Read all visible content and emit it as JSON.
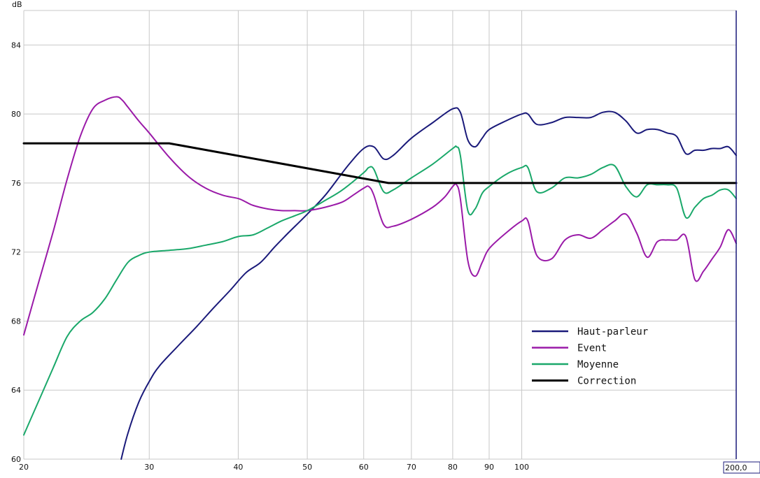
{
  "chart_data": {
    "type": "line",
    "y_unit_label": "dB",
    "x_scale": "log",
    "xlim": [
      20,
      200
    ],
    "ylim": [
      60,
      86
    ],
    "x_ticks": [
      {
        "value": 20,
        "label": "20"
      },
      {
        "value": 30,
        "label": "30"
      },
      {
        "value": 40,
        "label": "40"
      },
      {
        "value": 50,
        "label": "50"
      },
      {
        "value": 60,
        "label": "60"
      },
      {
        "value": 70,
        "label": "70"
      },
      {
        "value": 80,
        "label": "80"
      },
      {
        "value": 90,
        "label": "90"
      },
      {
        "value": 100,
        "label": "100"
      }
    ],
    "x_end_label": "200,0",
    "y_ticks": [
      {
        "value": 60,
        "label": "60"
      },
      {
        "value": 64,
        "label": "64"
      },
      {
        "value": 68,
        "label": "68"
      },
      {
        "value": 72,
        "label": "72"
      },
      {
        "value": 76,
        "label": "76"
      },
      {
        "value": 80,
        "label": "80"
      },
      {
        "value": 84,
        "label": "84"
      }
    ],
    "grid": true,
    "legend_position": "bottom-right",
    "series": [
      {
        "name": "Haut-parleur",
        "color": "#1a1a7a",
        "x": [
          27.4,
          28,
          29,
          30,
          31,
          33,
          35,
          37,
          39,
          41,
          43,
          45,
          47,
          50,
          53,
          57,
          60,
          62,
          64,
          66,
          70,
          75,
          80,
          82,
          84,
          86,
          88,
          90,
          95,
          100,
          102,
          105,
          110,
          115,
          120,
          125,
          130,
          135,
          140,
          145,
          150,
          155,
          160,
          165,
          170,
          175,
          180,
          185,
          190,
          195,
          200
        ],
        "y": [
          60.0,
          61.5,
          63.3,
          64.5,
          65.4,
          66.6,
          67.7,
          68.8,
          69.8,
          70.8,
          71.4,
          72.3,
          73.1,
          74.2,
          75.3,
          77.0,
          78.0,
          78.1,
          77.4,
          77.6,
          78.6,
          79.5,
          80.3,
          80.1,
          78.5,
          78.1,
          78.6,
          79.1,
          79.6,
          80.0,
          80.0,
          79.4,
          79.5,
          79.8,
          79.8,
          79.8,
          80.1,
          80.1,
          79.6,
          78.9,
          79.1,
          79.1,
          78.9,
          78.7,
          77.7,
          77.9,
          77.9,
          78.0,
          78.0,
          78.1,
          77.6
        ]
      },
      {
        "name": "Event",
        "color": "#9a1aa8",
        "x": [
          20,
          21,
          22,
          23,
          24,
          25,
          26,
          27,
          27.5,
          28,
          29,
          30,
          32,
          34,
          36,
          38,
          40,
          41,
          42,
          44,
          46,
          48,
          50,
          53,
          56,
          58,
          60,
          61,
          62,
          64,
          66,
          70,
          75,
          78,
          80,
          81,
          82,
          84,
          86,
          88,
          90,
          95,
          100,
          102,
          105,
          110,
          115,
          120,
          125,
          130,
          135,
          140,
          145,
          150,
          155,
          160,
          165,
          170,
          175,
          180,
          185,
          190,
          195,
          200
        ],
        "y": [
          67.2,
          70.3,
          73.2,
          76.2,
          78.7,
          80.3,
          80.8,
          81.0,
          80.8,
          80.4,
          79.6,
          78.9,
          77.5,
          76.4,
          75.7,
          75.3,
          75.1,
          74.9,
          74.7,
          74.5,
          74.4,
          74.4,
          74.4,
          74.6,
          74.9,
          75.3,
          75.7,
          75.8,
          75.3,
          73.6,
          73.5,
          73.9,
          74.6,
          75.2,
          75.8,
          75.9,
          75.1,
          71.5,
          70.6,
          71.4,
          72.2,
          73.1,
          73.8,
          73.8,
          71.8,
          71.6,
          72.7,
          73.0,
          72.8,
          73.3,
          73.8,
          74.2,
          73.1,
          71.7,
          72.6,
          72.7,
          72.7,
          72.9,
          70.4,
          70.9,
          71.6,
          72.3,
          73.3,
          72.5
        ]
      },
      {
        "name": "Moyenne",
        "color": "#1aa86a",
        "x": [
          20,
          21,
          22,
          23,
          24,
          25,
          26,
          27,
          28,
          29,
          30,
          32,
          34,
          36,
          38,
          40,
          42,
          44,
          46,
          48,
          50,
          53,
          56,
          60,
          61,
          62,
          64,
          66,
          70,
          75,
          80,
          81,
          82,
          84,
          86,
          88,
          90,
          95,
          100,
          102,
          105,
          110,
          115,
          120,
          125,
          130,
          135,
          140,
          145,
          150,
          155,
          160,
          165,
          170,
          175,
          180,
          185,
          190,
          195,
          200
        ],
        "y": [
          61.4,
          63.4,
          65.3,
          67.1,
          68.0,
          68.5,
          69.3,
          70.4,
          71.4,
          71.8,
          72.0,
          72.1,
          72.2,
          72.4,
          72.6,
          72.9,
          73.0,
          73.4,
          73.8,
          74.1,
          74.4,
          75.0,
          75.6,
          76.6,
          76.9,
          76.8,
          75.5,
          75.6,
          76.3,
          77.1,
          78.0,
          78.1,
          77.6,
          74.4,
          74.5,
          75.4,
          75.8,
          76.5,
          76.9,
          76.9,
          75.5,
          75.7,
          76.3,
          76.3,
          76.5,
          76.9,
          77.0,
          75.8,
          75.2,
          75.9,
          75.9,
          75.9,
          75.7,
          74.0,
          74.6,
          75.1,
          75.3,
          75.6,
          75.6,
          75.1
        ]
      },
      {
        "name": "Correction",
        "color": "#000000",
        "x": [
          20,
          32,
          65,
          200
        ],
        "y": [
          78.3,
          78.3,
          76.0,
          76.0
        ]
      }
    ]
  }
}
